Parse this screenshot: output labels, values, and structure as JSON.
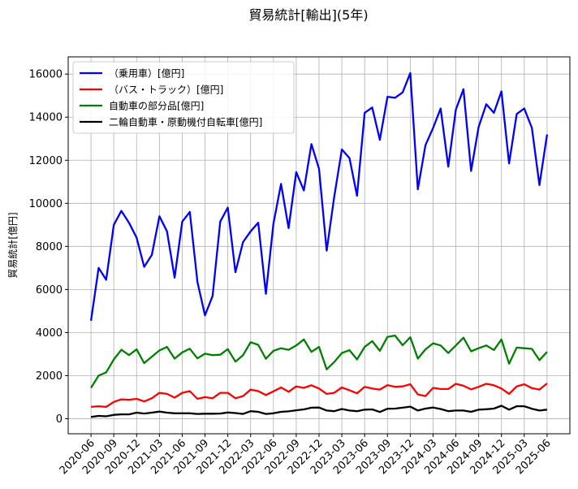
{
  "chart_data": {
    "type": "line",
    "title": "貿易統計[輸出](5年)",
    "xlabel": "",
    "ylabel": "貿易統計[億円]",
    "ylim": [
      -700,
      16800
    ],
    "grid": true,
    "legend_position": "top-left",
    "yticks": [
      0,
      2000,
      4000,
      6000,
      8000,
      10000,
      12000,
      14000,
      16000
    ],
    "yticklabels": [
      "0",
      "2000",
      "4000",
      "6000",
      "8000",
      "10000",
      "12000",
      "14000",
      "16000"
    ],
    "xticklabels": [
      "2020-06",
      "2020-09",
      "2020-12",
      "2021-03",
      "2021-06",
      "2021-09",
      "2021-12",
      "2022-03",
      "2022-06",
      "2022-09",
      "2022-12",
      "2023-03",
      "2023-06",
      "2023-09",
      "2023-12",
      "2024-03",
      "2024-06",
      "2024-09",
      "2024-12",
      "2025-03",
      "2025-06"
    ],
    "categories": [
      "2020-06",
      "2020-07",
      "2020-08",
      "2020-09",
      "2020-10",
      "2020-11",
      "2020-12",
      "2021-01",
      "2021-02",
      "2021-03",
      "2021-04",
      "2021-05",
      "2021-06",
      "2021-07",
      "2021-08",
      "2021-09",
      "2021-10",
      "2021-11",
      "2021-12",
      "2022-01",
      "2022-02",
      "2022-03",
      "2022-04",
      "2022-05",
      "2022-06",
      "2022-07",
      "2022-08",
      "2022-09",
      "2022-10",
      "2022-11",
      "2022-12",
      "2023-01",
      "2023-02",
      "2023-03",
      "2023-04",
      "2023-05",
      "2023-06",
      "2023-07",
      "2023-08",
      "2023-09",
      "2023-10",
      "2023-11",
      "2023-12",
      "2024-01",
      "2024-02",
      "2024-03",
      "2024-04",
      "2024-05",
      "2024-06",
      "2024-07",
      "2024-08",
      "2024-09",
      "2024-10",
      "2024-11",
      "2024-12",
      "2025-01",
      "2025-02",
      "2025-03",
      "2025-04",
      "2025-05",
      "2025-06"
    ],
    "series": [
      {
        "name": "（乗用車）[億円]",
        "color": "#0000ff",
        "values": [
          4550,
          7000,
          6450,
          9000,
          9650,
          9100,
          8400,
          7050,
          7600,
          9400,
          8700,
          6550,
          9150,
          9600,
          6350,
          4800,
          5700,
          9150,
          9800,
          6800,
          8200,
          8700,
          9100,
          5800,
          9050,
          10900,
          8850,
          11450,
          10600,
          12750,
          11600,
          7800,
          10300,
          12500,
          12100,
          10350,
          14200,
          14450,
          12950,
          14950,
          14900,
          15150,
          16050,
          10650,
          12700,
          13500,
          14400,
          11700,
          14350,
          15300,
          11500,
          13550,
          14600,
          14200,
          15200,
          11850,
          14150,
          14400,
          13500,
          10850,
          13200
        ]
      },
      {
        "name": "（バス・トラック）[億円]",
        "color": "#ff0000",
        "values": [
          550,
          580,
          550,
          780,
          900,
          880,
          920,
          800,
          950,
          1200,
          1150,
          980,
          1200,
          1280,
          920,
          1000,
          950,
          1200,
          1200,
          950,
          1050,
          1350,
          1280,
          1100,
          1270,
          1450,
          1250,
          1500,
          1430,
          1550,
          1400,
          1150,
          1200,
          1450,
          1320,
          1180,
          1480,
          1400,
          1350,
          1560,
          1480,
          1500,
          1600,
          1130,
          1050,
          1430,
          1380,
          1380,
          1620,
          1530,
          1360,
          1480,
          1620,
          1550,
          1400,
          1150,
          1500,
          1600,
          1420,
          1350,
          1640
        ]
      },
      {
        "name": "自動車の部分品[億円]",
        "color": "#008000",
        "values": [
          1430,
          2000,
          2150,
          2750,
          3200,
          2950,
          3220,
          2580,
          2880,
          3170,
          3330,
          2790,
          3080,
          3250,
          2800,
          3020,
          2950,
          2970,
          3230,
          2650,
          2950,
          3550,
          3430,
          2780,
          3150,
          3270,
          3200,
          3400,
          3680,
          3100,
          3330,
          2290,
          2630,
          3050,
          3180,
          2750,
          3330,
          3600,
          3150,
          3800,
          3860,
          3410,
          3780,
          2790,
          3220,
          3500,
          3400,
          3050,
          3400,
          3760,
          3130,
          3270,
          3400,
          3190,
          3680,
          2550,
          3300,
          3270,
          3240,
          2720,
          3100
        ]
      },
      {
        "name": "二輪自動車・原動機付自転車[億円]",
        "color": "#000000",
        "values": [
          80,
          130,
          110,
          180,
          200,
          200,
          280,
          240,
          280,
          330,
          280,
          250,
          250,
          250,
          220,
          230,
          230,
          240,
          290,
          260,
          220,
          350,
          320,
          220,
          250,
          320,
          340,
          390,
          430,
          510,
          520,
          380,
          350,
          450,
          380,
          350,
          420,
          430,
          310,
          460,
          470,
          510,
          560,
          380,
          470,
          520,
          450,
          350,
          380,
          380,
          320,
          420,
          440,
          470,
          600,
          420,
          580,
          580,
          460,
          380,
          420
        ]
      }
    ]
  }
}
